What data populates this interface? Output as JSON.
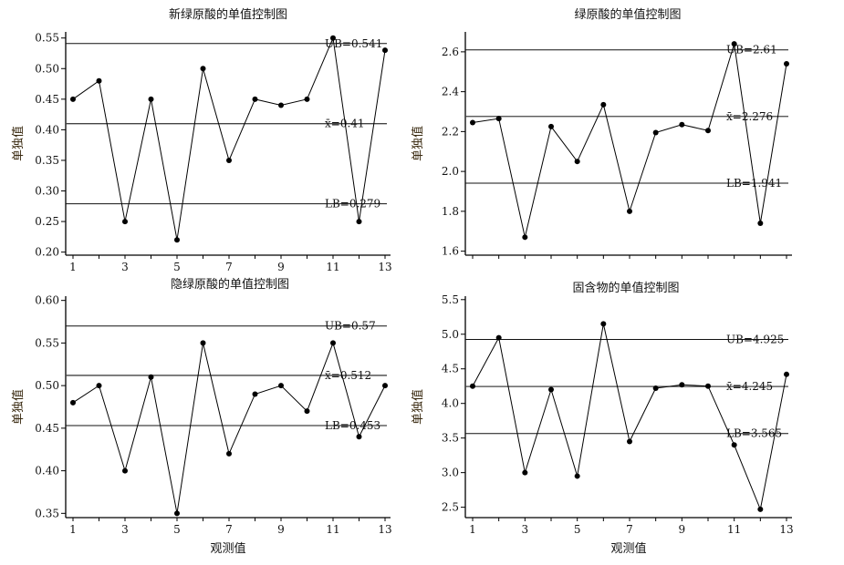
{
  "chart_data": [
    {
      "type": "line",
      "title": "新绿原酸的单值控制图",
      "ylabel": "单独值",
      "xlabel": "",
      "x": [
        1,
        2,
        3,
        4,
        5,
        6,
        7,
        8,
        9,
        10,
        11,
        12,
        13
      ],
      "x_ticks": [
        "1",
        "3",
        "5",
        "7",
        "9",
        "11",
        "13"
      ],
      "ylim": [
        0.195,
        0.56
      ],
      "y_ticks": [
        "0.20",
        "0.25",
        "0.30",
        "0.35",
        "0.40",
        "0.45",
        "0.50",
        "0.55"
      ],
      "y_tick_values": [
        0.2,
        0.25,
        0.3,
        0.35,
        0.4,
        0.45,
        0.5,
        0.55
      ],
      "values": [
        0.45,
        0.48,
        0.25,
        0.45,
        0.22,
        0.5,
        0.35,
        0.45,
        0.44,
        0.45,
        0.55,
        0.25,
        0.53
      ],
      "limits": [
        {
          "label": "UB=0.541",
          "value": 0.541
        },
        {
          "label": "x̄=0.41",
          "value": 0.41
        },
        {
          "label": "LB=0.279",
          "value": 0.279
        }
      ]
    },
    {
      "type": "line",
      "title": "绿原酸的单值控制图",
      "ylabel": "单独值",
      "xlabel": "",
      "x": [
        1,
        2,
        3,
        4,
        5,
        6,
        7,
        8,
        9,
        10,
        11,
        12,
        13
      ],
      "x_ticks": [],
      "ylim": [
        1.58,
        2.7
      ],
      "y_ticks": [
        "1.6",
        "1.8",
        "2.0",
        "2.2",
        "2.4",
        "2.6"
      ],
      "y_tick_values": [
        1.6,
        1.8,
        2.0,
        2.2,
        2.4,
        2.6
      ],
      "values": [
        2.245,
        2.265,
        1.67,
        2.225,
        2.05,
        2.335,
        1.8,
        2.195,
        2.235,
        2.205,
        2.64,
        1.74,
        2.54
      ],
      "limits": [
        {
          "label": "UB=2.61",
          "value": 2.61
        },
        {
          "label": "x̄=2.276",
          "value": 2.276
        },
        {
          "label": "LB=1.941",
          "value": 1.941
        }
      ]
    },
    {
      "type": "line",
      "title": "隐绿原酸的单值控制图",
      "ylabel": "单独值",
      "xlabel": "观测值",
      "x": [
        1,
        2,
        3,
        4,
        5,
        6,
        7,
        8,
        9,
        10,
        11,
        12,
        13
      ],
      "x_ticks": [
        "1",
        "3",
        "5",
        "7",
        "9",
        "11",
        "13"
      ],
      "ylim": [
        0.345,
        0.605
      ],
      "y_ticks": [
        "0.35",
        "0.40",
        "0.45",
        "0.50",
        "0.55",
        "0.60"
      ],
      "y_tick_values": [
        0.35,
        0.4,
        0.45,
        0.5,
        0.55,
        0.6
      ],
      "values": [
        0.48,
        0.5,
        0.4,
        0.51,
        0.35,
        0.55,
        0.42,
        0.49,
        0.5,
        0.47,
        0.55,
        0.44,
        0.5
      ],
      "limits": [
        {
          "label": "UB=0.57",
          "value": 0.57
        },
        {
          "label": "x̄=0.512",
          "value": 0.512
        },
        {
          "label": "LB=0.453",
          "value": 0.453
        }
      ]
    },
    {
      "type": "line",
      "title": "固含物的单值控制图",
      "ylabel": "单独值",
      "xlabel": "观测值",
      "x": [
        1,
        2,
        3,
        4,
        5,
        6,
        7,
        8,
        9,
        10,
        11,
        12,
        13
      ],
      "x_ticks": [
        "1",
        "3",
        "5",
        "7",
        "9",
        "11",
        "13"
      ],
      "ylim": [
        2.35,
        5.55
      ],
      "y_ticks": [
        "2.5",
        "3.0",
        "3.5",
        "4.0",
        "4.5",
        "5.0",
        "5.5"
      ],
      "y_tick_values": [
        2.5,
        3.0,
        3.5,
        4.0,
        4.5,
        5.0,
        5.5
      ],
      "values": [
        4.25,
        4.95,
        3.0,
        4.2,
        2.95,
        5.15,
        3.45,
        4.22,
        4.27,
        4.25,
        3.4,
        2.47,
        4.42
      ],
      "limits": [
        {
          "label": "UB=4.925",
          "value": 4.925
        },
        {
          "label": "x̄=4.245",
          "value": 4.245
        },
        {
          "label": "LB=3.565",
          "value": 3.565
        }
      ]
    }
  ]
}
